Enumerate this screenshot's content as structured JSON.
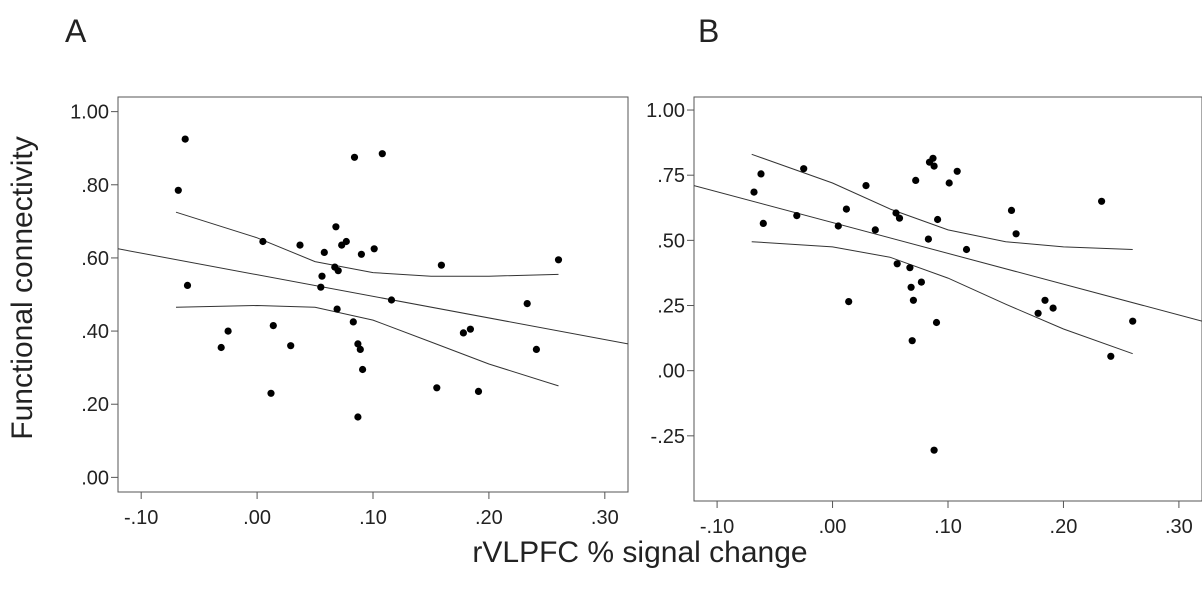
{
  "figure": {
    "ylabel": "Functional connectivity",
    "xlabel": "rVLPFC % signal change"
  },
  "chart_data": [
    {
      "panel": "A",
      "type": "scatter",
      "xlabel": "rVLPFC % signal change",
      "ylabel": "Functional connectivity",
      "xlim": [
        -0.12,
        0.32
      ],
      "ylim": [
        -0.04,
        1.04
      ],
      "xticks": [
        -0.1,
        0.0,
        0.1,
        0.2,
        0.3
      ],
      "xtick_labels": [
        "-.10",
        ".00",
        ".10",
        ".20",
        ".30"
      ],
      "yticks": [
        0.0,
        0.2,
        0.4,
        0.6,
        0.8,
        1.0
      ],
      "ytick_labels": [
        ".00",
        ".20",
        ".40",
        ".60",
        ".80",
        "1.00"
      ],
      "grid": false,
      "points": [
        {
          "x": -0.068,
          "y": 0.785
        },
        {
          "x": -0.062,
          "y": 0.925
        },
        {
          "x": -0.06,
          "y": 0.525
        },
        {
          "x": -0.031,
          "y": 0.355
        },
        {
          "x": -0.025,
          "y": 0.4
        },
        {
          "x": 0.005,
          "y": 0.645
        },
        {
          "x": 0.012,
          "y": 0.23
        },
        {
          "x": 0.014,
          "y": 0.415
        },
        {
          "x": 0.029,
          "y": 0.36
        },
        {
          "x": 0.037,
          "y": 0.635
        },
        {
          "x": 0.055,
          "y": 0.52
        },
        {
          "x": 0.056,
          "y": 0.55
        },
        {
          "x": 0.058,
          "y": 0.615
        },
        {
          "x": 0.067,
          "y": 0.575
        },
        {
          "x": 0.068,
          "y": 0.685
        },
        {
          "x": 0.069,
          "y": 0.46
        },
        {
          "x": 0.07,
          "y": 0.565
        },
        {
          "x": 0.073,
          "y": 0.635
        },
        {
          "x": 0.077,
          "y": 0.645
        },
        {
          "x": 0.083,
          "y": 0.425
        },
        {
          "x": 0.084,
          "y": 0.875
        },
        {
          "x": 0.087,
          "y": 0.365
        },
        {
          "x": 0.087,
          "y": 0.165
        },
        {
          "x": 0.089,
          "y": 0.35
        },
        {
          "x": 0.09,
          "y": 0.61
        },
        {
          "x": 0.091,
          "y": 0.295
        },
        {
          "x": 0.101,
          "y": 0.625
        },
        {
          "x": 0.108,
          "y": 0.885
        },
        {
          "x": 0.116,
          "y": 0.485
        },
        {
          "x": 0.155,
          "y": 0.245
        },
        {
          "x": 0.159,
          "y": 0.58
        },
        {
          "x": 0.178,
          "y": 0.395
        },
        {
          "x": 0.184,
          "y": 0.405
        },
        {
          "x": 0.191,
          "y": 0.235
        },
        {
          "x": 0.233,
          "y": 0.475
        },
        {
          "x": 0.241,
          "y": 0.35
        },
        {
          "x": 0.26,
          "y": 0.595
        }
      ],
      "fit_line": [
        {
          "x": -0.12,
          "y": 0.625
        },
        {
          "x": 0.32,
          "y": 0.365
        }
      ],
      "ci_upper": [
        {
          "x": -0.07,
          "y": 0.725
        },
        {
          "x": 0.0,
          "y": 0.655
        },
        {
          "x": 0.05,
          "y": 0.59
        },
        {
          "x": 0.1,
          "y": 0.56
        },
        {
          "x": 0.15,
          "y": 0.55
        },
        {
          "x": 0.2,
          "y": 0.55
        },
        {
          "x": 0.26,
          "y": 0.555
        }
      ],
      "ci_lower": [
        {
          "x": -0.07,
          "y": 0.465
        },
        {
          "x": 0.0,
          "y": 0.47
        },
        {
          "x": 0.05,
          "y": 0.465
        },
        {
          "x": 0.1,
          "y": 0.43
        },
        {
          "x": 0.15,
          "y": 0.37
        },
        {
          "x": 0.2,
          "y": 0.31
        },
        {
          "x": 0.26,
          "y": 0.25
        }
      ]
    },
    {
      "panel": "B",
      "type": "scatter",
      "xlabel": "rVLPFC % signal change",
      "ylabel": "Functional connectivity",
      "xlim": [
        -0.12,
        0.32
      ],
      "ylim": [
        -0.5,
        1.05
      ],
      "xticks": [
        -0.1,
        0.0,
        0.1,
        0.2,
        0.3
      ],
      "xtick_labels": [
        "-.10",
        ".00",
        ".10",
        ".20",
        ".30"
      ],
      "yticks": [
        -0.25,
        0.0,
        0.25,
        0.5,
        0.75,
        1.0
      ],
      "ytick_labels": [
        "-.25",
        ".00",
        ".25",
        ".50",
        ".75",
        "1.00"
      ],
      "grid": false,
      "points": [
        {
          "x": -0.068,
          "y": 0.685
        },
        {
          "x": -0.062,
          "y": 0.755
        },
        {
          "x": -0.06,
          "y": 0.565
        },
        {
          "x": -0.031,
          "y": 0.595
        },
        {
          "x": -0.025,
          "y": 0.775
        },
        {
          "x": 0.005,
          "y": 0.555
        },
        {
          "x": 0.012,
          "y": 0.62
        },
        {
          "x": 0.014,
          "y": 0.265
        },
        {
          "x": 0.029,
          "y": 0.71
        },
        {
          "x": 0.037,
          "y": 0.54
        },
        {
          "x": 0.055,
          "y": 0.605
        },
        {
          "x": 0.056,
          "y": 0.41
        },
        {
          "x": 0.058,
          "y": 0.585
        },
        {
          "x": 0.067,
          "y": 0.395
        },
        {
          "x": 0.068,
          "y": 0.32
        },
        {
          "x": 0.069,
          "y": 0.115
        },
        {
          "x": 0.07,
          "y": 0.27
        },
        {
          "x": 0.072,
          "y": 0.73
        },
        {
          "x": 0.077,
          "y": 0.34
        },
        {
          "x": 0.083,
          "y": 0.505
        },
        {
          "x": 0.084,
          "y": 0.8
        },
        {
          "x": 0.087,
          "y": 0.815
        },
        {
          "x": 0.088,
          "y": 0.785
        },
        {
          "x": 0.088,
          "y": -0.305
        },
        {
          "x": 0.09,
          "y": 0.185
        },
        {
          "x": 0.091,
          "y": 0.58
        },
        {
          "x": 0.101,
          "y": 0.72
        },
        {
          "x": 0.108,
          "y": 0.765
        },
        {
          "x": 0.116,
          "y": 0.465
        },
        {
          "x": 0.155,
          "y": 0.615
        },
        {
          "x": 0.159,
          "y": 0.525
        },
        {
          "x": 0.178,
          "y": 0.22
        },
        {
          "x": 0.184,
          "y": 0.27
        },
        {
          "x": 0.191,
          "y": 0.24
        },
        {
          "x": 0.233,
          "y": 0.65
        },
        {
          "x": 0.241,
          "y": 0.055
        },
        {
          "x": 0.26,
          "y": 0.19
        }
      ],
      "fit_line": [
        {
          "x": -0.12,
          "y": 0.71
        },
        {
          "x": 0.32,
          "y": 0.19
        }
      ],
      "ci_upper": [
        {
          "x": -0.07,
          "y": 0.83
        },
        {
          "x": 0.0,
          "y": 0.72
        },
        {
          "x": 0.05,
          "y": 0.62
        },
        {
          "x": 0.1,
          "y": 0.54
        },
        {
          "x": 0.15,
          "y": 0.495
        },
        {
          "x": 0.2,
          "y": 0.475
        },
        {
          "x": 0.26,
          "y": 0.465
        }
      ],
      "ci_lower": [
        {
          "x": -0.07,
          "y": 0.495
        },
        {
          "x": 0.0,
          "y": 0.475
        },
        {
          "x": 0.05,
          "y": 0.435
        },
        {
          "x": 0.1,
          "y": 0.355
        },
        {
          "x": 0.15,
          "y": 0.255
        },
        {
          "x": 0.2,
          "y": 0.16
        },
        {
          "x": 0.26,
          "y": 0.065
        }
      ]
    }
  ]
}
